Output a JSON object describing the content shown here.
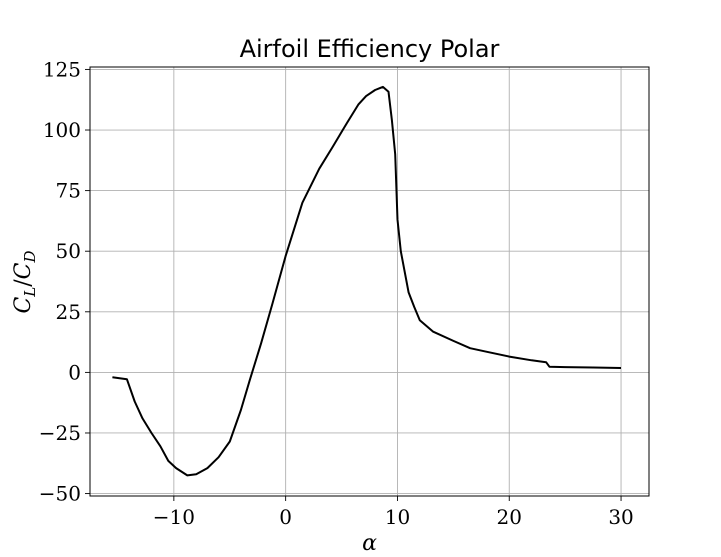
{
  "chart_data": {
    "type": "line",
    "title": "Airfoil Efficiency Polar",
    "xlabel": "α",
    "ylabel": "C_L/C_D",
    "ylabel_main1": "C",
    "ylabel_sub1": "L",
    "ylabel_slash": "/",
    "ylabel_main2": "C",
    "ylabel_sub2": "D",
    "xlim": [
      -17.5,
      32.5
    ],
    "ylim": [
      -51,
      126
    ],
    "xticks": [
      -10,
      0,
      10,
      20,
      30
    ],
    "xtick_labels": [
      "−10",
      "0",
      "10",
      "20",
      "30"
    ],
    "yticks": [
      -50,
      -25,
      0,
      25,
      50,
      75,
      100,
      125
    ],
    "ytick_labels": [
      "−50",
      "−25",
      "0",
      "25",
      "50",
      "75",
      "100",
      "125"
    ],
    "grid": true,
    "series": [
      {
        "color": "#000000",
        "x": [
          -15.5,
          -14.2,
          -13.5,
          -12.8,
          -12.0,
          -11.2,
          -10.5,
          -9.8,
          -8.8,
          -8.0,
          -7.0,
          -6.0,
          -5.0,
          -4.0,
          -3.2,
          -2.2,
          -1.2,
          0.0,
          1.5,
          3.0,
          4.2,
          5.5,
          6.5,
          7.2,
          8.0,
          8.7,
          9.2,
          9.5,
          9.8,
          10.0,
          10.3,
          11.0,
          11.5,
          12.0,
          13.2,
          15.0,
          16.5,
          18.0,
          20.0,
          22.0,
          23.3,
          23.6,
          25.0,
          27.5,
          30.0
        ],
        "y": [
          -2.0,
          -2.8,
          -12.0,
          -19.0,
          -25.0,
          -30.5,
          -36.5,
          -39.5,
          -42.5,
          -42.0,
          -39.5,
          -35.0,
          -28.5,
          -15.5,
          -3.0,
          12.0,
          28.0,
          48.0,
          70.0,
          84.0,
          93.0,
          103.0,
          110.5,
          114.0,
          116.5,
          117.8,
          115.8,
          104.0,
          90.0,
          63.0,
          50.0,
          33.0,
          27.0,
          21.5,
          16.8,
          13.0,
          10.0,
          8.5,
          6.5,
          5.0,
          4.2,
          2.3,
          2.2,
          2.0,
          1.8
        ]
      }
    ]
  }
}
